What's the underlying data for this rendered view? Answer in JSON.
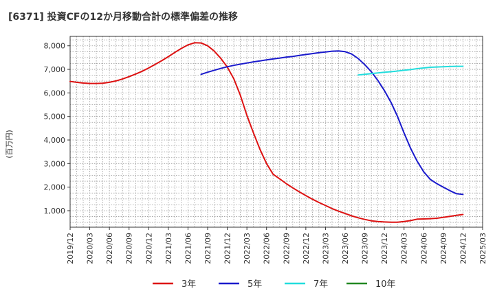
{
  "chart_data": {
    "type": "line",
    "title": "[6371]  投資CFの12か月移動合計の標準偏差の推移",
    "ylabel": "(百万円)",
    "ylim": [
      300,
      8400
    ],
    "yticks": [
      1000,
      2000,
      3000,
      4000,
      5000,
      6000,
      7000,
      8000
    ],
    "ytick_labels": [
      "1,000",
      "2,000",
      "3,000",
      "4,000",
      "5,000",
      "6,000",
      "7,000",
      "8,000"
    ],
    "xlim": [
      "2019-12",
      "2025-03"
    ],
    "xticks": [
      "2019/12",
      "2020/03",
      "2020/06",
      "2020/09",
      "2020/12",
      "2021/03",
      "2021/06",
      "2021/09",
      "2021/12",
      "2022/03",
      "2022/06",
      "2022/09",
      "2022/12",
      "2023/03",
      "2023/06",
      "2023/09",
      "2023/12",
      "2024/03",
      "2024/06",
      "2024/09",
      "2024/12",
      "2025/03"
    ],
    "grid": true,
    "legend_position": "bottom",
    "series": [
      {
        "name": "3年",
        "color": "#dd1111",
        "points": [
          [
            "2019-12",
            6490
          ],
          [
            "2020-01",
            6450
          ],
          [
            "2020-02",
            6420
          ],
          [
            "2020-03",
            6400
          ],
          [
            "2020-04",
            6400
          ],
          [
            "2020-05",
            6410
          ],
          [
            "2020-06",
            6450
          ],
          [
            "2020-07",
            6510
          ],
          [
            "2020-08",
            6590
          ],
          [
            "2020-09",
            6690
          ],
          [
            "2020-10",
            6800
          ],
          [
            "2020-11",
            6920
          ],
          [
            "2020-12",
            7060
          ],
          [
            "2021-01",
            7210
          ],
          [
            "2021-02",
            7370
          ],
          [
            "2021-03",
            7540
          ],
          [
            "2021-04",
            7720
          ],
          [
            "2021-05",
            7890
          ],
          [
            "2021-06",
            8040
          ],
          [
            "2021-07",
            8130
          ],
          [
            "2021-08",
            8120
          ],
          [
            "2021-09",
            8000
          ],
          [
            "2021-10",
            7780
          ],
          [
            "2021-11",
            7470
          ],
          [
            "2021-12",
            7100
          ],
          [
            "2022-01",
            6600
          ],
          [
            "2022-02",
            5900
          ],
          [
            "2022-03",
            5050
          ],
          [
            "2022-04",
            4300
          ],
          [
            "2022-05",
            3600
          ],
          [
            "2022-06",
            3000
          ],
          [
            "2022-07",
            2550
          ],
          [
            "2022-08",
            2350
          ],
          [
            "2022-09",
            2150
          ],
          [
            "2022-10",
            1970
          ],
          [
            "2022-11",
            1800
          ],
          [
            "2022-12",
            1640
          ],
          [
            "2023-01",
            1490
          ],
          [
            "2023-02",
            1350
          ],
          [
            "2023-03",
            1220
          ],
          [
            "2023-04",
            1090
          ],
          [
            "2023-05",
            980
          ],
          [
            "2023-06",
            880
          ],
          [
            "2023-07",
            780
          ],
          [
            "2023-08",
            700
          ],
          [
            "2023-09",
            630
          ],
          [
            "2023-10",
            570
          ],
          [
            "2023-11",
            540
          ],
          [
            "2023-12",
            520
          ],
          [
            "2024-01",
            510
          ],
          [
            "2024-02",
            510
          ],
          [
            "2024-03",
            540
          ],
          [
            "2024-04",
            580
          ],
          [
            "2024-05",
            640
          ],
          [
            "2024-06",
            650
          ],
          [
            "2024-07",
            660
          ],
          [
            "2024-08",
            680
          ],
          [
            "2024-09",
            720
          ],
          [
            "2024-10",
            760
          ],
          [
            "2024-11",
            800
          ],
          [
            "2024-12",
            840
          ]
        ]
      },
      {
        "name": "5年",
        "color": "#1a1acc",
        "points": [
          [
            "2021-08",
            6790
          ],
          [
            "2021-09",
            6880
          ],
          [
            "2021-10",
            6960
          ],
          [
            "2021-11",
            7040
          ],
          [
            "2021-12",
            7110
          ],
          [
            "2022-01",
            7170
          ],
          [
            "2022-02",
            7220
          ],
          [
            "2022-03",
            7270
          ],
          [
            "2022-04",
            7320
          ],
          [
            "2022-05",
            7360
          ],
          [
            "2022-06",
            7400
          ],
          [
            "2022-07",
            7440
          ],
          [
            "2022-08",
            7480
          ],
          [
            "2022-09",
            7520
          ],
          [
            "2022-10",
            7550
          ],
          [
            "2022-11",
            7590
          ],
          [
            "2022-12",
            7630
          ],
          [
            "2023-01",
            7670
          ],
          [
            "2023-02",
            7710
          ],
          [
            "2023-03",
            7740
          ],
          [
            "2023-04",
            7770
          ],
          [
            "2023-05",
            7780
          ],
          [
            "2023-06",
            7750
          ],
          [
            "2023-07",
            7650
          ],
          [
            "2023-08",
            7460
          ],
          [
            "2023-09",
            7200
          ],
          [
            "2023-10",
            6900
          ],
          [
            "2023-11",
            6530
          ],
          [
            "2023-12",
            6100
          ],
          [
            "2024-01",
            5600
          ],
          [
            "2024-02",
            5000
          ],
          [
            "2024-03",
            4300
          ],
          [
            "2024-04",
            3650
          ],
          [
            "2024-05",
            3100
          ],
          [
            "2024-06",
            2650
          ],
          [
            "2024-07",
            2330
          ],
          [
            "2024-08",
            2150
          ],
          [
            "2024-09",
            2000
          ],
          [
            "2024-10",
            1850
          ],
          [
            "2024-11",
            1720
          ],
          [
            "2024-12",
            1690
          ]
        ]
      },
      {
        "name": "7年",
        "color": "#22dddd",
        "points": [
          [
            "2023-08",
            6760
          ],
          [
            "2023-09",
            6790
          ],
          [
            "2023-10",
            6820
          ],
          [
            "2023-11",
            6850
          ],
          [
            "2023-12",
            6880
          ],
          [
            "2024-01",
            6900
          ],
          [
            "2024-02",
            6930
          ],
          [
            "2024-03",
            6960
          ],
          [
            "2024-04",
            6990
          ],
          [
            "2024-05",
            7030
          ],
          [
            "2024-06",
            7060
          ],
          [
            "2024-07",
            7090
          ],
          [
            "2024-08",
            7100
          ],
          [
            "2024-09",
            7110
          ],
          [
            "2024-10",
            7120
          ],
          [
            "2024-11",
            7130
          ],
          [
            "2024-12",
            7130
          ]
        ]
      },
      {
        "name": "10年",
        "color": "#228822",
        "points": []
      }
    ]
  }
}
